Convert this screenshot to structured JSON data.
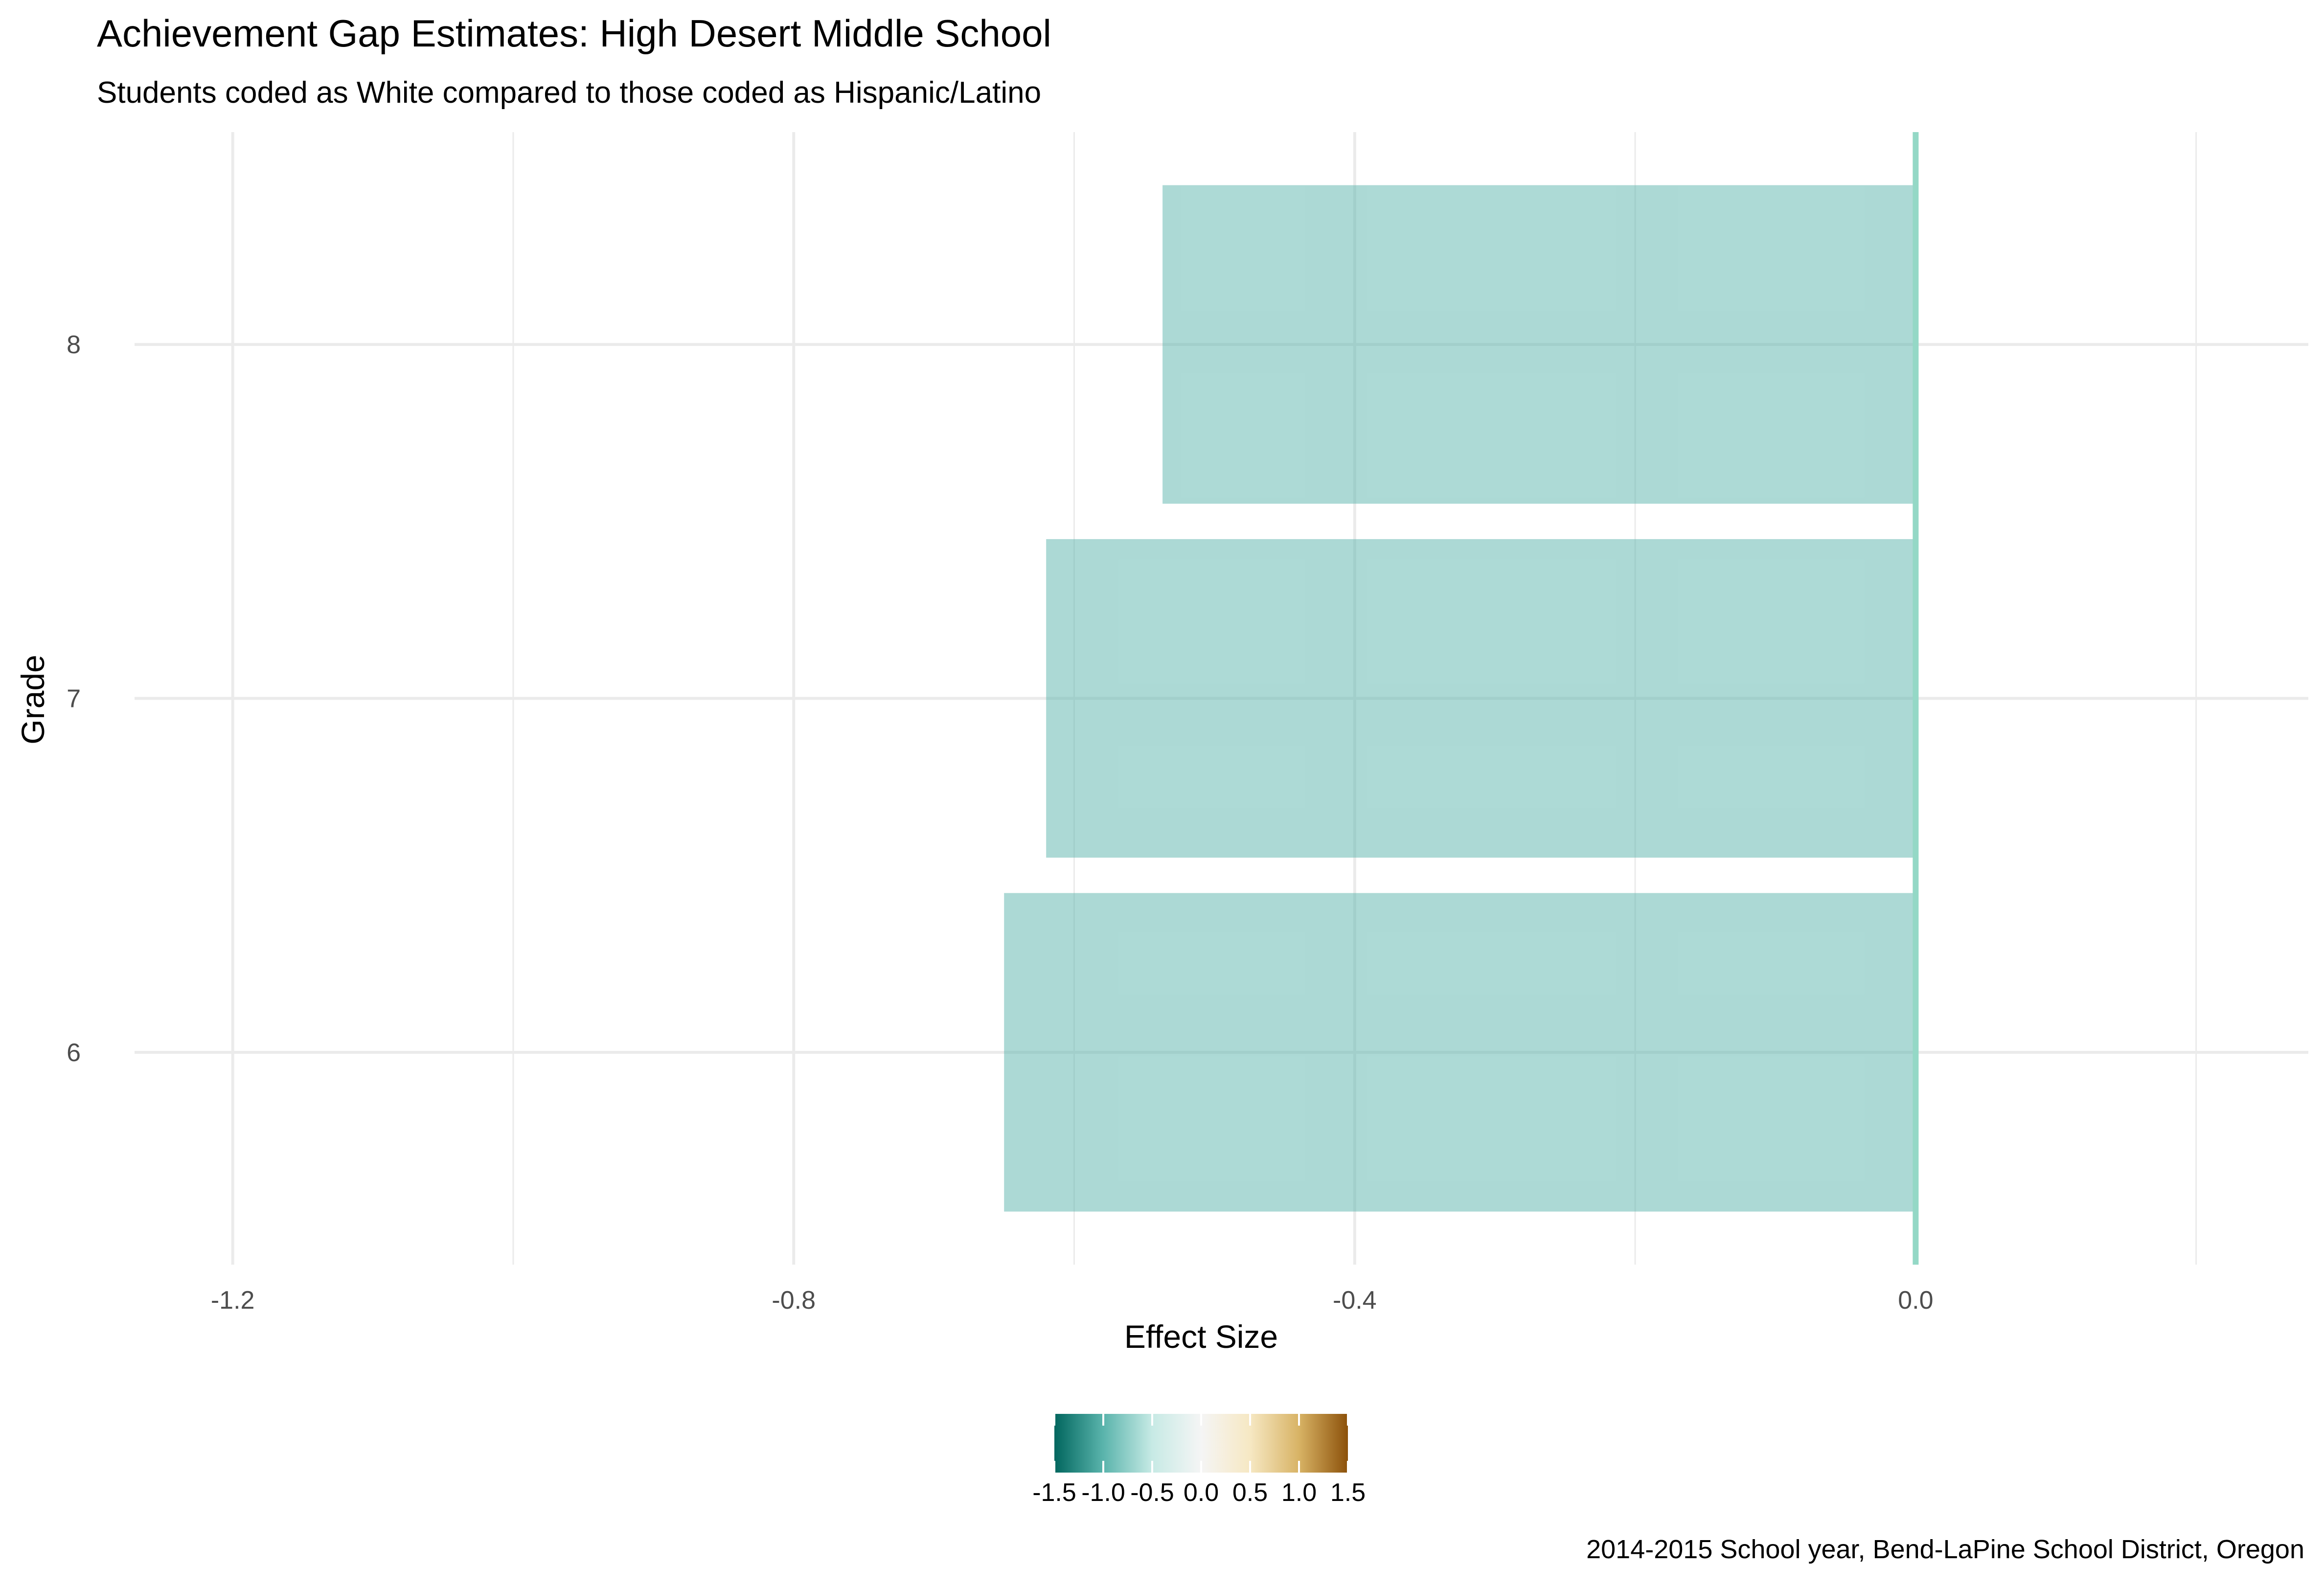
{
  "chart_data": {
    "type": "bar",
    "orientation": "horizontal",
    "title": "Achievement Gap Estimates: High Desert Middle School",
    "subtitle": "Students coded as White compared to those coded as Hispanic/Latino",
    "caption": "2014-2015 School year, Bend-LaPine School District, Oregon",
    "xlabel": "Effect Size",
    "ylabel": "Grade",
    "categories": [
      "6",
      "7",
      "8"
    ],
    "values": [
      -0.65,
      -0.62,
      -0.537
    ],
    "xlim": [
      -1.27,
      0.28
    ],
    "x_ticks": [
      -1.2,
      -0.8,
      -0.4,
      0.0
    ],
    "x_tick_labels": [
      "-1.2",
      "-0.8",
      "-0.4",
      "0.0"
    ],
    "reference_line": 0.0,
    "grid": true,
    "legend": {
      "type": "colorbar",
      "placement": "bottom",
      "range": [
        -1.5,
        1.5
      ],
      "ticks": [
        -1.5,
        -1.0,
        -0.5,
        0.0,
        0.5,
        1.0,
        1.5
      ],
      "tick_labels": [
        "-1.5",
        "-1.0",
        "-0.5",
        "0.0",
        "0.5",
        "1.0",
        "1.5"
      ],
      "colors": [
        "#01665e",
        "#5ab4ac",
        "#c7eae5",
        "#f5f5f5",
        "#f6e8c3",
        "#d8b365",
        "#8c510a"
      ]
    },
    "colors": {
      "bar_fill": "#5ab4ac",
      "bar_opacity": 0.5,
      "reference_line": "#94d8c6",
      "grid": "#ebebeb"
    }
  }
}
